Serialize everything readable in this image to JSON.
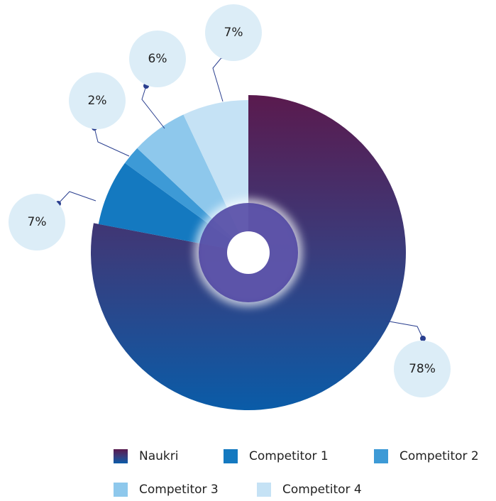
{
  "chart_data": {
    "type": "pie",
    "categories": [
      "Naukri",
      "Competitor 1",
      "Competitor 2",
      "Competitor 3",
      "Competitor 4"
    ],
    "values": [
      78,
      7,
      2,
      6,
      7
    ],
    "value_labels": [
      "78%",
      "7%",
      "2%",
      "6%",
      "7%"
    ],
    "colors": [
      "#3a3c7c",
      "#1479c0",
      "#3d9ad6",
      "#8ec8ec",
      "#c5e2f5"
    ]
  }
}
